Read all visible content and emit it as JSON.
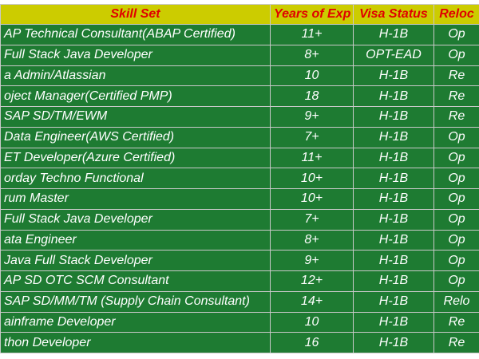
{
  "table": {
    "header": [
      "Skill Set",
      "Years of Exp",
      "Visa Status",
      "Reloc"
    ],
    "rows": [
      [
        "AP Technical Consultant(ABAP Certified)",
        "11+",
        "H-1B",
        "Op"
      ],
      [
        "Full Stack Java Developer",
        "8+",
        "OPT-EAD",
        "Op"
      ],
      [
        "a Admin/Atlassian",
        "10",
        "H-1B",
        "Re"
      ],
      [
        "oject Manager(Certified PMP)",
        "18",
        "H-1B",
        "Re"
      ],
      [
        "SAP SD/TM/EWM",
        "9+",
        "H-1B",
        "Re"
      ],
      [
        "Data Engineer(AWS Certified)",
        "7+",
        "H-1B",
        "Op"
      ],
      [
        "ET Developer(Azure Certified)",
        "11+",
        "H-1B",
        "Op"
      ],
      [
        "orday Techno Functional",
        "10+",
        "H-1B",
        "Op"
      ],
      [
        "rum Master",
        "10+",
        "H-1B",
        "Op"
      ],
      [
        "Full Stack Java Developer",
        "7+",
        "H-1B",
        "Op"
      ],
      [
        "ata Engineer",
        "8+",
        "H-1B",
        "Op"
      ],
      [
        "Java Full Stack Developer",
        "9+",
        "H-1B",
        "Op"
      ],
      [
        "AP SD OTC SCM Consultant",
        "12+",
        "H-1B",
        "Op"
      ],
      [
        "SAP SD/MM/TM (Supply Chain Consultant)",
        "14+",
        "H-1B",
        "Relo"
      ],
      [
        "ainframe Developer",
        "10",
        "H-1B",
        "Re"
      ],
      [
        "thon Developer",
        "16",
        "H-1B",
        "Re"
      ]
    ]
  }
}
